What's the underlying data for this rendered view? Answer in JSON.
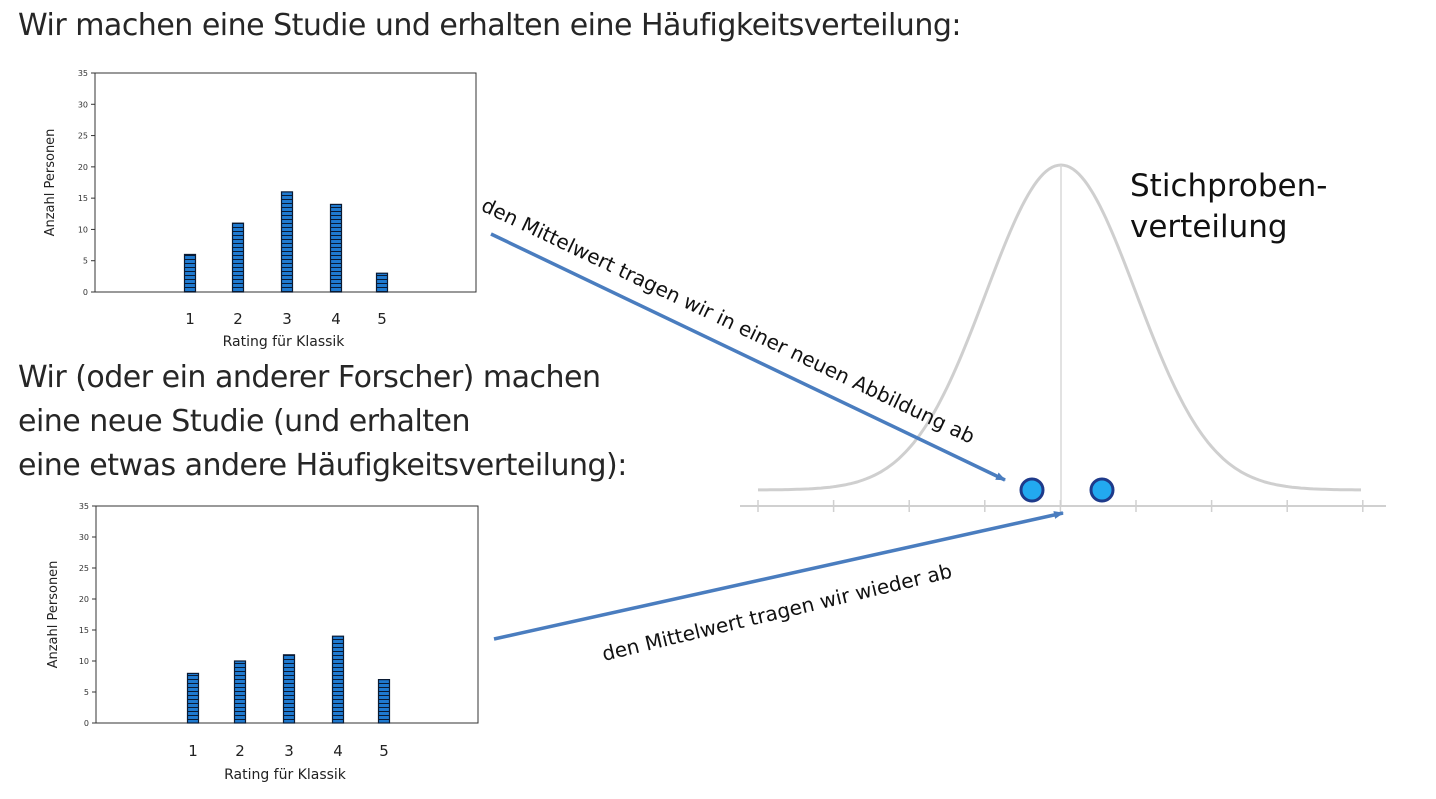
{
  "headings": {
    "intro": "Wir machen eine Studie und erhalten eine Häufigkeitsverteilung:",
    "repeat_lines": [
      "Wir (oder ein anderer Forscher) machen",
      "eine neue Studie (und erhalten",
      "eine etwas andere Häufigkeitsverteilung):"
    ]
  },
  "distribution": {
    "label_lines": [
      "Stichproben-",
      "verteilung"
    ],
    "curve_color": "#cfcfcf",
    "dot_fill": "#22a9f0",
    "dot_stroke": "#1e3a8a"
  },
  "arrows": {
    "first": "den Mittelwert tragen wir in einer neuen Abbildung ab",
    "second": "den Mittelwert tragen wir wieder ab",
    "color": "#4a7dbf"
  },
  "chart_data": [
    {
      "type": "bar",
      "categories": [
        "1",
        "2",
        "3",
        "4",
        "5"
      ],
      "values": [
        6,
        11,
        16,
        14,
        3
      ],
      "xlabel": "Rating für Klassik",
      "ylabel": "Anzahl Personen",
      "ylim": [
        0,
        35
      ],
      "yticks": [
        "0",
        "5",
        "10",
        "15",
        "20",
        "25",
        "30",
        "35"
      ],
      "bar_color": "#1f7ad0"
    },
    {
      "type": "bar",
      "categories": [
        "1",
        "2",
        "3",
        "4",
        "5"
      ],
      "values": [
        8,
        10,
        11,
        14,
        7
      ],
      "xlabel": "Rating für Klassik",
      "ylabel": "Anzahl Personen",
      "ylim": [
        0,
        35
      ],
      "yticks": [
        "0",
        "5",
        "10",
        "15",
        "20",
        "25",
        "30",
        "35"
      ],
      "bar_color": "#1f7ad0"
    }
  ]
}
